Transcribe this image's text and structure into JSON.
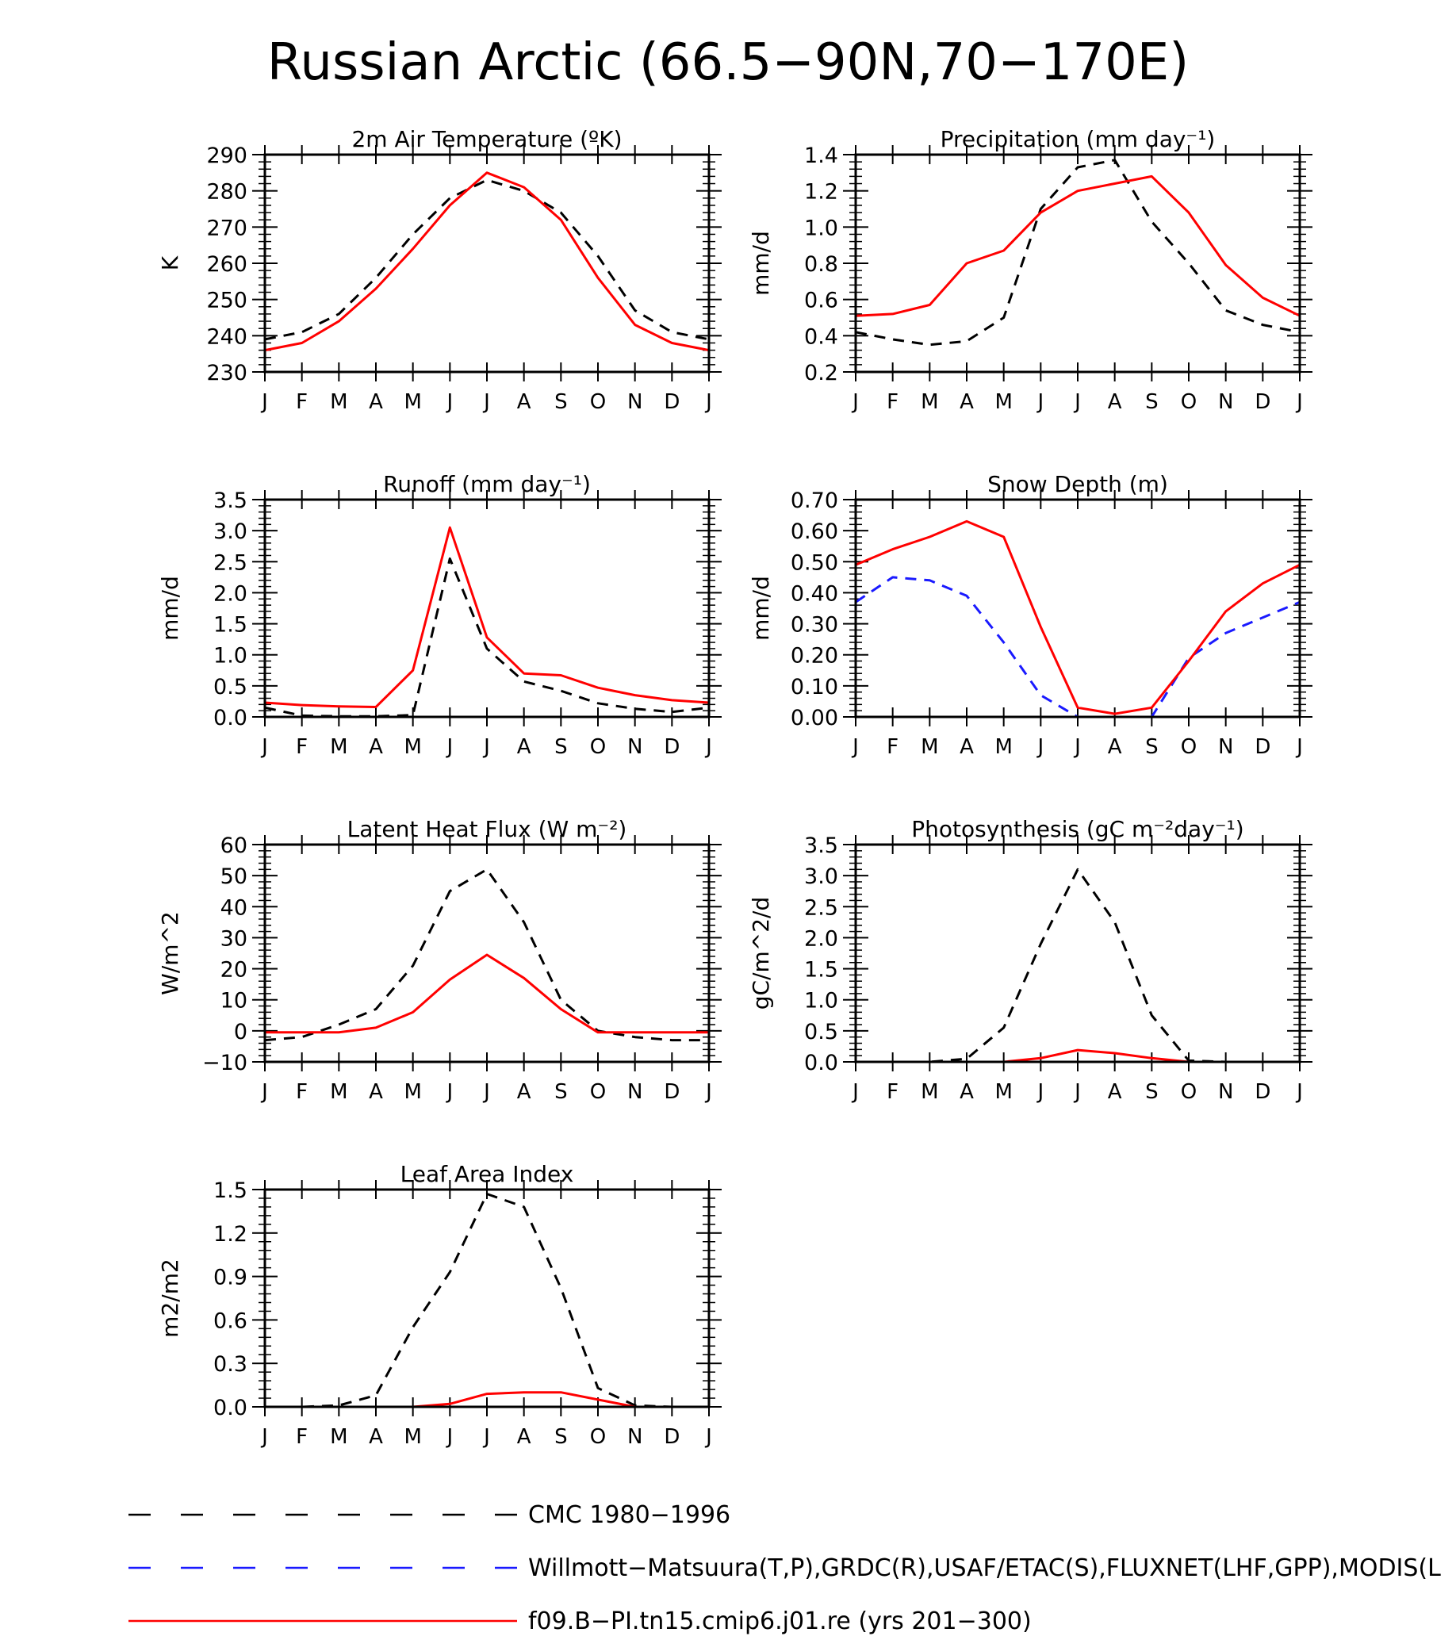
{
  "title": "Russian Arctic (66.5−90N,70−170E)",
  "months": [
    "J",
    "F",
    "M",
    "A",
    "M",
    "J",
    "J",
    "A",
    "S",
    "O",
    "N",
    "D",
    "J"
  ],
  "colors": {
    "cmc": "#000000",
    "obs": "#1a1aff",
    "model": "#ff0000"
  },
  "legend": [
    {
      "label": "CMC 1980−1996",
      "color": "#000000",
      "dash": true
    },
    {
      "label": "Willmott−Matsuura(T,P),GRDC(R),USAF/ETAC(S),FLUXNET(LHF,GPP),MODIS(L",
      "color": "#1a1aff",
      "dash": true
    },
    {
      "label": "f09.B−PI.tn15.cmip6.j01.re (yrs 201−300)",
      "color": "#ff0000",
      "dash": false
    }
  ],
  "chart_data": [
    {
      "type": "line",
      "title": "2m Air Temperature (ºK)",
      "ylabel": "K",
      "ylim": [
        230,
        290
      ],
      "yticks": [
        "230",
        "240",
        "250",
        "260",
        "270",
        "280",
        "290"
      ],
      "ytick_values": [
        230,
        240,
        250,
        260,
        270,
        280,
        290
      ],
      "series": [
        {
          "name": "CMC 1980−1996",
          "style": "cmc",
          "values": [
            239,
            241,
            246,
            256,
            268,
            278,
            283,
            280,
            274,
            262,
            247,
            241,
            239
          ]
        },
        {
          "name": "f09.B−PI.tn15.cmip6.j01.re (yrs 201−300)",
          "style": "model",
          "values": [
            236,
            238,
            244,
            253,
            264,
            276,
            285,
            281,
            272,
            256,
            243,
            238,
            236
          ]
        }
      ]
    },
    {
      "type": "line",
      "title": "Precipitation (mm day⁻¹)",
      "ylabel": "mm/d",
      "ylim": [
        0.2,
        1.4
      ],
      "yticks": [
        "0.2",
        "0.4",
        "0.6",
        "0.8",
        "1.0",
        "1.2",
        "1.4"
      ],
      "ytick_values": [
        0.2,
        0.4,
        0.6,
        0.8,
        1.0,
        1.2,
        1.4
      ],
      "series": [
        {
          "name": "CMC 1980−1996",
          "style": "cmc",
          "values": [
            0.42,
            0.38,
            0.35,
            0.37,
            0.5,
            1.1,
            1.33,
            1.37,
            1.03,
            0.8,
            0.54,
            0.46,
            0.42
          ]
        },
        {
          "name": "f09.B−PI.tn15.cmip6.j01.re (yrs 201−300)",
          "style": "model",
          "values": [
            0.51,
            0.52,
            0.57,
            0.8,
            0.87,
            1.08,
            1.2,
            1.24,
            1.28,
            1.08,
            0.79,
            0.61,
            0.51
          ]
        }
      ]
    },
    {
      "type": "line",
      "title": "Runoff (mm day⁻¹)",
      "ylabel": "mm/d",
      "ylim": [
        0,
        3.5
      ],
      "yticks": [
        "0.0",
        "0.5",
        "1.0",
        "1.5",
        "2.0",
        "2.5",
        "3.0",
        "3.5"
      ],
      "ytick_values": [
        0,
        0.5,
        1.0,
        1.5,
        2.0,
        2.5,
        3.0,
        3.5
      ],
      "series": [
        {
          "name": "CMC 1980−1996",
          "style": "cmc",
          "values": [
            0.15,
            0.02,
            0.01,
            0.01,
            0.03,
            2.55,
            1.1,
            0.57,
            0.42,
            0.22,
            0.13,
            0.08,
            0.15
          ]
        },
        {
          "name": "f09.B−PI.tn15.cmip6.j01.re (yrs 201−300)",
          "style": "model",
          "values": [
            0.23,
            0.19,
            0.17,
            0.16,
            0.75,
            3.05,
            1.28,
            0.7,
            0.67,
            0.47,
            0.35,
            0.27,
            0.23
          ]
        }
      ]
    },
    {
      "type": "line",
      "title": "Snow Depth (m)",
      "ylabel": "mm/d",
      "ylim": [
        0,
        0.7
      ],
      "yticks": [
        "0.00",
        "0.10",
        "0.20",
        "0.30",
        "0.40",
        "0.50",
        "0.60",
        "0.70"
      ],
      "ytick_values": [
        0,
        0.1,
        0.2,
        0.3,
        0.4,
        0.5,
        0.6,
        0.7
      ],
      "series": [
        {
          "name": "CMC 1980−1996",
          "style": "cmc",
          "values": [
            0,
            0,
            0,
            0,
            0,
            0,
            0,
            0,
            0,
            0,
            0,
            0,
            0
          ]
        },
        {
          "name": "Willmott−Matsuura(T,P),GRDC(R),USAF/ETAC(S),FLUXNET(LHF,GPP),MODIS(L",
          "style": "obs",
          "values": [
            0.37,
            0.45,
            0.44,
            0.39,
            0.24,
            0.07,
            0.0,
            0.0,
            0.0,
            0.19,
            0.27,
            0.32,
            0.37
          ]
        },
        {
          "name": "f09.B−PI.tn15.cmip6.j01.re (yrs 201−300)",
          "style": "model",
          "values": [
            0.49,
            0.54,
            0.58,
            0.63,
            0.58,
            0.29,
            0.03,
            0.01,
            0.03,
            0.18,
            0.34,
            0.43,
            0.49
          ]
        }
      ]
    },
    {
      "type": "line",
      "title": "Latent Heat Flux (W m⁻²)",
      "ylabel": "W/m^2",
      "ylim": [
        -10,
        60
      ],
      "yticks": [
        "−10",
        "0",
        "10",
        "20",
        "30",
        "40",
        "50",
        "60"
      ],
      "ytick_values": [
        -10,
        0,
        10,
        20,
        30,
        40,
        50,
        60
      ],
      "series": [
        {
          "name": "CMC 1980−1996",
          "style": "cmc",
          "values": [
            -3,
            -2,
            2,
            7,
            21,
            45,
            52,
            35,
            10,
            0,
            -2,
            -3,
            -3
          ]
        },
        {
          "name": "f09.B−PI.tn15.cmip6.j01.re (yrs 201−300)",
          "style": "model",
          "values": [
            -0.5,
            -0.5,
            -0.5,
            1,
            6,
            16.5,
            24.5,
            17,
            7,
            -0.5,
            -0.5,
            -0.5,
            -0.5
          ]
        }
      ]
    },
    {
      "type": "line",
      "title": "Photosynthesis (gC m⁻²day⁻¹)",
      "ylabel": "gC/m^2/d",
      "ylim": [
        0,
        3.5
      ],
      "yticks": [
        "0.0",
        "0.5",
        "1.0",
        "1.5",
        "2.0",
        "2.5",
        "3.0",
        "3.5"
      ],
      "ytick_values": [
        0,
        0.5,
        1.0,
        1.5,
        2.0,
        2.5,
        3.0,
        3.5
      ],
      "series": [
        {
          "name": "CMC 1980−1996",
          "style": "cmc",
          "values": [
            0,
            0,
            0,
            0.05,
            0.55,
            1.9,
            3.1,
            2.25,
            0.75,
            0.02,
            0,
            0,
            0
          ]
        },
        {
          "name": "f09.B−PI.tn15.cmip6.j01.re (yrs 201−300)",
          "style": "model",
          "values": [
            0,
            0,
            0,
            0,
            0,
            0.06,
            0.19,
            0.14,
            0.06,
            0,
            0,
            0,
            0
          ]
        }
      ]
    },
    {
      "type": "line",
      "title": "Leaf Area Index",
      "ylabel": "m2/m2",
      "ylim": [
        0,
        1.5
      ],
      "yticks": [
        "0.0",
        "0.3",
        "0.6",
        "0.9",
        "1.2",
        "1.5"
      ],
      "ytick_values": [
        0,
        0.3,
        0.6,
        0.9,
        1.2,
        1.5
      ],
      "series": [
        {
          "name": "CMC 1980−1996",
          "style": "cmc",
          "values": [
            0,
            0,
            0.01,
            0.08,
            0.55,
            0.93,
            1.47,
            1.38,
            0.82,
            0.13,
            0.01,
            0,
            0
          ]
        },
        {
          "name": "f09.B−PI.tn15.cmip6.j01.re (yrs 201−300)",
          "style": "model",
          "values": [
            0,
            0,
            0,
            0,
            0,
            0.02,
            0.09,
            0.1,
            0.1,
            0.05,
            0,
            0,
            0
          ]
        }
      ]
    }
  ]
}
